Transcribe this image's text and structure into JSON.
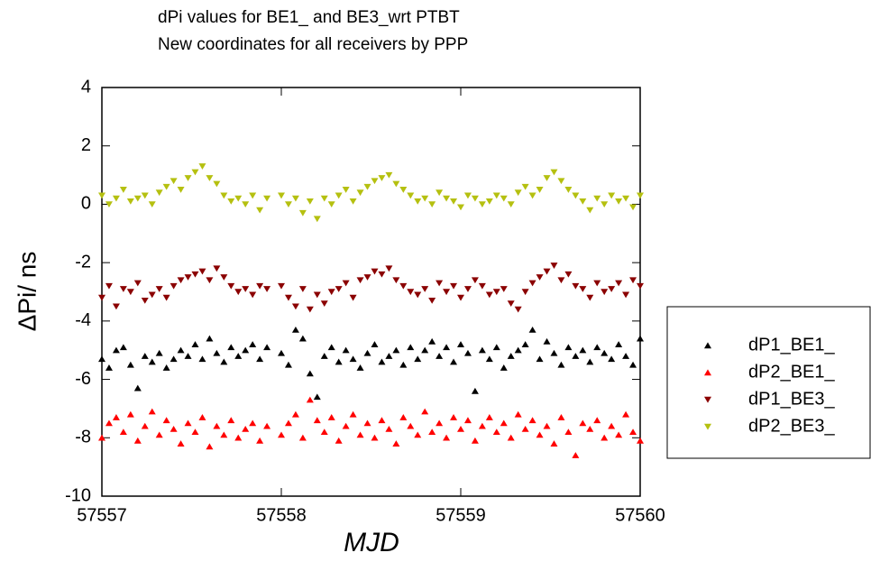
{
  "chart_data": {
    "type": "scatter",
    "title": "dPi values for BE1_ and BE3_wrt PTBT",
    "subtitle": "New coordinates for all receivers by  PPP",
    "x_label": "MJD",
    "y_label": "ΔPi/ ns",
    "xlim": [
      57557,
      57560
    ],
    "xticks": [
      57557,
      57558,
      57559,
      57560
    ],
    "ylim": [
      -10,
      4
    ],
    "yticks": [
      -10,
      -8,
      -6,
      -4,
      -2,
      0,
      2,
      4
    ],
    "legend": "outside-right",
    "x": [
      57557,
      57557.04,
      57557.08,
      57557.12,
      57557.16,
      57557.2,
      57557.24,
      57557.28,
      57557.32,
      57557.36,
      57557.4,
      57557.44,
      57557.48,
      57557.52,
      57557.56,
      57557.6,
      57557.64,
      57557.68,
      57557.72,
      57557.76,
      57557.8,
      57557.84,
      57557.88,
      57557.92,
      57558,
      57558.04,
      57558.08,
      57558.12,
      57558.16,
      57558.2,
      57558.24,
      57558.28,
      57558.32,
      57558.36,
      57558.4,
      57558.44,
      57558.48,
      57558.52,
      57558.56,
      57558.6,
      57558.64,
      57558.68,
      57558.72,
      57558.76,
      57558.8,
      57558.84,
      57558.88,
      57558.92,
      57558.96,
      57559,
      57559.04,
      57559.08,
      57559.12,
      57559.16,
      57559.2,
      57559.24,
      57559.28,
      57559.32,
      57559.36,
      57559.4,
      57559.44,
      57559.48,
      57559.52,
      57559.56,
      57559.6,
      57559.64,
      57559.68,
      57559.72,
      57559.76,
      57559.8,
      57559.84,
      57559.88,
      57559.92,
      57559.96,
      57560
    ],
    "series": [
      {
        "name": "dP1_BE1_",
        "color": "#000000",
        "marker": "triangle-up",
        "values": [
          -5.3,
          -5.6,
          -5.0,
          -4.9,
          -5.5,
          -6.3,
          -5.2,
          -5.4,
          -5.1,
          -5.6,
          -5.3,
          -5.0,
          -5.2,
          -4.8,
          -5.3,
          -4.6,
          -5.1,
          -5.4,
          -4.9,
          -5.2,
          -5.0,
          -4.8,
          -5.3,
          -4.9,
          -5.1,
          -5.5,
          -4.3,
          -4.6,
          -5.8,
          -6.6,
          -5.2,
          -4.9,
          -5.4,
          -5.0,
          -5.3,
          -5.6,
          -5.1,
          -4.8,
          -5.4,
          -5.2,
          -5.0,
          -5.5,
          -4.9,
          -5.3,
          -5.0,
          -4.7,
          -5.2,
          -4.9,
          -5.4,
          -4.8,
          -5.1,
          -6.4,
          -5.0,
          -5.3,
          -4.9,
          -5.6,
          -5.2,
          -5.0,
          -4.8,
          -4.3,
          -5.3,
          -4.7,
          -5.1,
          -5.5,
          -4.9,
          -5.2,
          -5.0,
          -5.4,
          -4.9,
          -5.1,
          -5.3,
          -4.8,
          -5.2,
          -5.5,
          -4.6
        ]
      },
      {
        "name": "dP2_BE1_",
        "color": "#ff0000",
        "marker": "triangle-up",
        "values": [
          -8.0,
          -7.5,
          -7.3,
          -7.8,
          -7.2,
          -8.1,
          -7.6,
          -7.1,
          -7.9,
          -7.4,
          -7.7,
          -8.2,
          -7.5,
          -7.8,
          -7.3,
          -8.3,
          -7.6,
          -7.9,
          -7.4,
          -8.0,
          -7.7,
          -7.5,
          -8.1,
          -7.6,
          -7.9,
          -7.5,
          -7.2,
          -8.0,
          -6.7,
          -7.4,
          -7.8,
          -7.3,
          -8.1,
          -7.6,
          -7.2,
          -7.9,
          -7.5,
          -8.0,
          -7.4,
          -7.7,
          -8.2,
          -7.3,
          -7.6,
          -7.9,
          -7.1,
          -7.8,
          -7.5,
          -8.0,
          -7.3,
          -7.7,
          -7.4,
          -8.1,
          -7.6,
          -7.3,
          -7.8,
          -7.5,
          -8.0,
          -7.2,
          -7.7,
          -7.4,
          -7.9,
          -7.6,
          -8.2,
          -7.3,
          -7.8,
          -8.6,
          -7.5,
          -7.7,
          -7.4,
          -8.0,
          -7.6,
          -7.9,
          -7.2,
          -7.8,
          -8.1
        ]
      },
      {
        "name": "dP1_BE3_",
        "color": "#8b0000",
        "marker": "triangle-down",
        "values": [
          -3.2,
          -2.8,
          -3.5,
          -2.9,
          -3.0,
          -2.7,
          -3.3,
          -3.1,
          -2.9,
          -3.2,
          -2.8,
          -2.6,
          -2.5,
          -2.4,
          -2.3,
          -2.6,
          -2.2,
          -2.5,
          -2.8,
          -3.0,
          -2.9,
          -3.1,
          -2.8,
          -2.9,
          -2.8,
          -3.2,
          -3.5,
          -2.9,
          -3.6,
          -3.1,
          -3.4,
          -3.0,
          -2.9,
          -2.7,
          -3.2,
          -2.6,
          -2.5,
          -2.3,
          -2.4,
          -2.2,
          -2.6,
          -2.8,
          -3.0,
          -3.1,
          -2.9,
          -3.3,
          -2.7,
          -3.0,
          -2.8,
          -3.2,
          -2.9,
          -2.6,
          -2.8,
          -3.1,
          -3.0,
          -2.9,
          -3.4,
          -3.6,
          -3.0,
          -2.7,
          -2.5,
          -2.3,
          -2.1,
          -2.6,
          -2.4,
          -2.8,
          -2.9,
          -3.2,
          -2.7,
          -3.0,
          -2.9,
          -2.7,
          -3.1,
          -2.6,
          -2.8
        ]
      },
      {
        "name": "dP2_BE3_",
        "color": "#b5c010",
        "marker": "triangle-down",
        "values": [
          0.3,
          0.0,
          0.2,
          0.5,
          0.1,
          0.2,
          0.3,
          0.0,
          0.4,
          0.6,
          0.8,
          0.5,
          0.9,
          1.1,
          1.3,
          0.9,
          0.7,
          0.3,
          0.1,
          0.2,
          0.0,
          0.3,
          -0.2,
          0.2,
          0.3,
          0.0,
          0.2,
          -0.3,
          0.1,
          -0.5,
          0.2,
          0.0,
          0.3,
          0.5,
          0.1,
          0.4,
          0.6,
          0.8,
          0.9,
          1.0,
          0.7,
          0.5,
          0.3,
          0.1,
          0.2,
          0.0,
          0.4,
          0.2,
          0.1,
          -0.1,
          0.3,
          0.2,
          0.0,
          0.1,
          0.3,
          0.2,
          0.0,
          0.4,
          0.6,
          0.3,
          0.5,
          0.9,
          1.1,
          0.8,
          0.5,
          0.3,
          0.1,
          -0.2,
          0.2,
          0.0,
          0.3,
          0.1,
          0.2,
          -0.1,
          0.3
        ]
      }
    ]
  }
}
